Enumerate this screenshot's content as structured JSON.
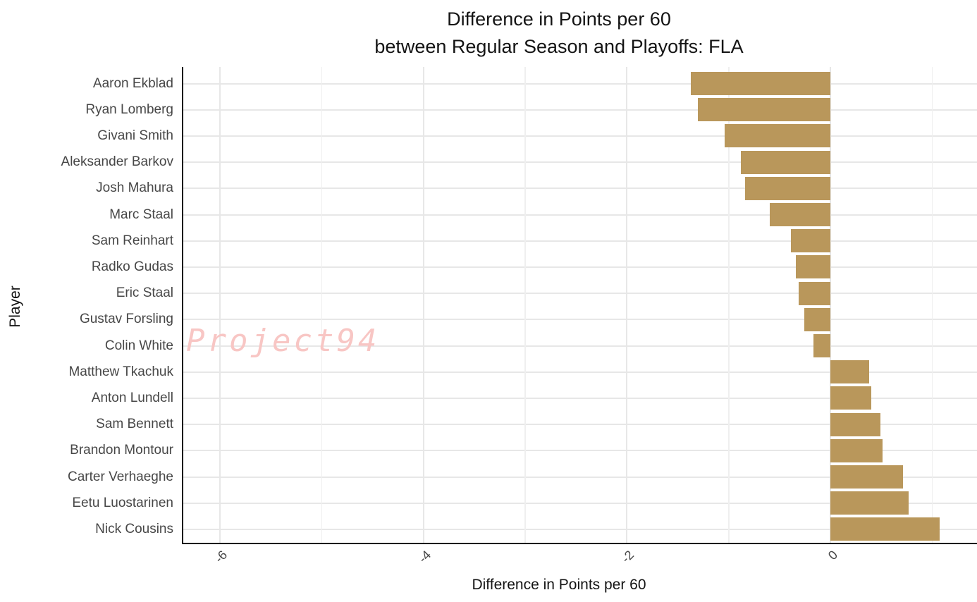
{
  "title": {
    "line1": "Difference in Points per 60",
    "line2": "between Regular Season and Playoffs: FLA"
  },
  "watermark": "Project94",
  "chart_data": {
    "type": "bar",
    "orientation": "horizontal",
    "title": "Difference in Points per 60 between Regular Season and Playoffs: FLA",
    "xlabel": "Difference in Points per 60",
    "ylabel": "Player",
    "categories": [
      "Aaron Ekblad",
      "Ryan Lomberg",
      "Givani Smith",
      "Aleksander Barkov",
      "Josh Mahura",
      "Marc Staal",
      "Sam Reinhart",
      "Radko Gudas",
      "Eric Staal",
      "Gustav Forsling",
      "Colin White",
      "Matthew Tkachuk",
      "Anton Lundell",
      "Sam Bennett",
      "Brandon Montour",
      "Carter Verhaeghe",
      "Eetu Luostarinen",
      "Nick Cousins"
    ],
    "values": [
      -1.37,
      -1.3,
      -1.04,
      -0.88,
      -0.84,
      -0.6,
      -0.39,
      -0.34,
      -0.31,
      -0.26,
      -0.17,
      0.38,
      0.4,
      0.49,
      0.51,
      0.71,
      0.77,
      1.07
    ],
    "xlim": [
      -6.36,
      1.44
    ],
    "x_major_ticks": [
      -6,
      -4,
      -2,
      0
    ],
    "x_tick_labels": [
      "-6",
      "-4",
      "-2",
      "0"
    ],
    "x_gridline_step": 1,
    "grid": true,
    "legend": "none",
    "bar_color": "#b9975b",
    "background": "#ffffff"
  },
  "colors": {
    "bar": "#b9975b",
    "grid_major": "#e7e7e7",
    "grid_minor": "#efefef",
    "axis_line": "#000000",
    "tick_text": "#474747",
    "title_text": "#141414",
    "watermark": "#f8c6c4"
  }
}
